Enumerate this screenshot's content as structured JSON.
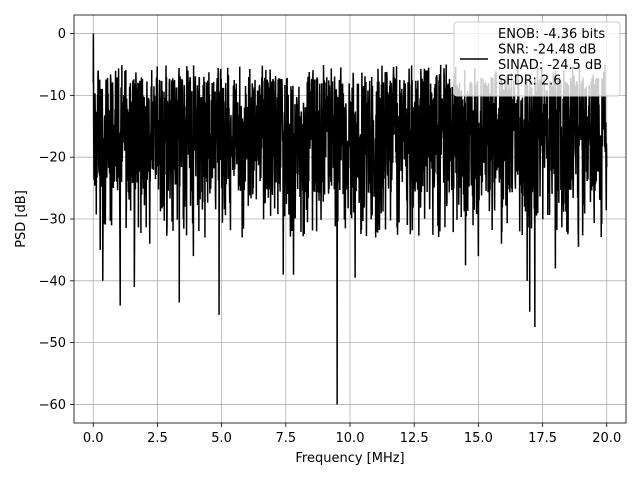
{
  "chart_data": {
    "type": "line",
    "xlabel": "Frequency [MHz]",
    "ylabel": "PSD [dB]",
    "xlim": [
      -0.75,
      20.75
    ],
    "ylim": [
      -63,
      3
    ],
    "xticks": [
      0.0,
      2.5,
      5.0,
      7.5,
      10.0,
      12.5,
      15.0,
      17.5,
      20.0
    ],
    "xtick_labels": [
      "0.0",
      "2.5",
      "5.0",
      "7.5",
      "10.0",
      "12.5",
      "15.0",
      "17.5",
      "20.0"
    ],
    "yticks": [
      0,
      -10,
      -20,
      -30,
      -40,
      -50,
      -60
    ],
    "ytick_labels": [
      "0",
      "−10",
      "−20",
      "−30",
      "−40",
      "−50",
      "−60"
    ],
    "grid": true,
    "legend_position": "top-right",
    "series": [
      {
        "name": "ENOB: -4.36 bits\nSNR: -24.48 dB\nSINAD: -24.5 dB\nSFDR: 2.6",
        "color": "#000000",
        "x_range": [
          0,
          20
        ],
        "baseline_db": -17,
        "points": 2048,
        "peak": {
          "x": 0.0,
          "y": 0
        },
        "notches": [
          {
            "x": 0.37,
            "y": -40
          },
          {
            "x": 0.27,
            "y": -35
          },
          {
            "x": 1.05,
            "y": -44
          },
          {
            "x": 1.6,
            "y": -41
          },
          {
            "x": 2.2,
            "y": -34
          },
          {
            "x": 3.35,
            "y": -43.5
          },
          {
            "x": 3.9,
            "y": -36
          },
          {
            "x": 4.9,
            "y": -45.5
          },
          {
            "x": 4.35,
            "y": -33
          },
          {
            "x": 5.8,
            "y": -33
          },
          {
            "x": 7.4,
            "y": -39
          },
          {
            "x": 7.8,
            "y": -39
          },
          {
            "x": 9.5,
            "y": -60
          },
          {
            "x": 10.2,
            "y": -39.5
          },
          {
            "x": 8.7,
            "y": -32
          },
          {
            "x": 11.0,
            "y": -33
          },
          {
            "x": 13.5,
            "y": -32
          },
          {
            "x": 14.5,
            "y": -37.5
          },
          {
            "x": 15.0,
            "y": -36
          },
          {
            "x": 15.9,
            "y": -34
          },
          {
            "x": 16.9,
            "y": -40
          },
          {
            "x": 17.2,
            "y": -47.5
          },
          {
            "x": 17.0,
            "y": -45
          },
          {
            "x": 18.0,
            "y": -38
          },
          {
            "x": 18.9,
            "y": -34.5
          }
        ]
      }
    ]
  }
}
